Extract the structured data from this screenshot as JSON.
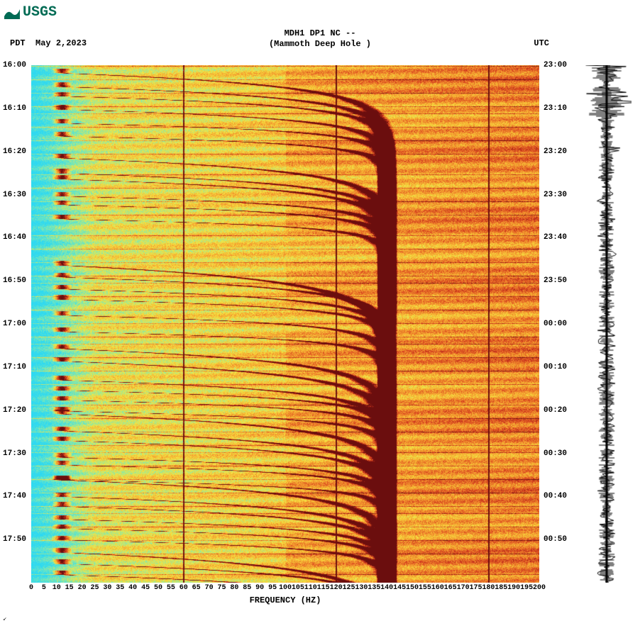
{
  "logo": {
    "text": "USGS",
    "color": "#006b54"
  },
  "header": {
    "line1": "MDH1 DP1 NC --",
    "line2": "(Mammoth Deep Hole )"
  },
  "tz_labels": {
    "left": "PDT",
    "date": "May 2,2023",
    "right": "UTC"
  },
  "spectrogram": {
    "type": "spectrogram",
    "x_label": "FREQUENCY (HZ)",
    "xlim": [
      0,
      200
    ],
    "x_ticks": [
      0,
      5,
      10,
      15,
      20,
      25,
      30,
      35,
      40,
      45,
      50,
      55,
      60,
      65,
      70,
      75,
      80,
      85,
      90,
      95,
      100,
      105,
      110,
      115,
      120,
      125,
      130,
      135,
      140,
      145,
      150,
      155,
      160,
      165,
      170,
      175,
      180,
      185,
      190,
      195,
      200
    ],
    "y_left_ticks": [
      "16:00",
      "16:10",
      "16:20",
      "16:30",
      "16:40",
      "16:50",
      "17:00",
      "17:10",
      "17:20",
      "17:30",
      "17:40",
      "17:50"
    ],
    "y_right_ticks": [
      "23:00",
      "23:10",
      "23:20",
      "23:30",
      "23:40",
      "23:50",
      "00:00",
      "00:10",
      "00:20",
      "00:30",
      "00:40",
      "00:50"
    ],
    "y_span_minutes": 120,
    "colors": {
      "low": "#2ed9f2",
      "mid_low": "#78e8b8",
      "mid": "#f5e642",
      "mid_high": "#f59a2e",
      "high": "#d43a1e",
      "peak": "#6b0e0e"
    },
    "vertical_dark_lines": [
      60,
      120,
      180
    ],
    "gliss_bands": {
      "count_per_cluster": 6,
      "clusters_y_minutes": [
        0,
        20,
        45,
        65,
        80,
        95,
        112
      ],
      "start_freq": 12,
      "end_freq": 140,
      "curvature": 0.45
    }
  },
  "seismogram": {
    "trace_color": "#000000",
    "background": "#ffffff",
    "amplitude_scale": 28,
    "baseline_x": 35,
    "segments": 400
  },
  "fonts": {
    "mono": "Courier New",
    "title_size": 12,
    "tick_size": 11
  },
  "footer_mark": "↙"
}
